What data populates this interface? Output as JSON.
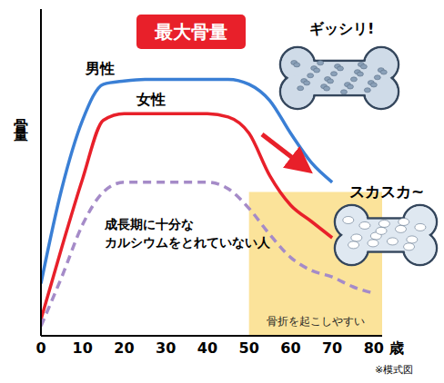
{
  "chart_data": {
    "type": "line",
    "title": "最大骨量",
    "x_label": "歳",
    "y_label": "骨量",
    "x": [
      0,
      5,
      10,
      15,
      20,
      25,
      30,
      35,
      40,
      45,
      50,
      55,
      60,
      65,
      70,
      75,
      80
    ],
    "series": [
      {
        "name": "男性",
        "color": "#3a7fd5",
        "line_style": "solid",
        "values": [
          16,
          45,
          66,
          77,
          78,
          78.5,
          78.5,
          78.5,
          78.5,
          78.5,
          77,
          72,
          62,
          53,
          47,
          null,
          null
        ]
      },
      {
        "name": "女性",
        "color": "#e8202a",
        "line_style": "solid",
        "values": [
          5,
          27,
          48,
          66,
          68,
          68,
          68,
          68,
          68,
          67,
          62,
          49,
          40,
          35,
          30,
          null,
          null
        ]
      },
      {
        "name": "成長期に十分なカルシウムをとれていない人",
        "color": "#a58bc8",
        "line_style": "dashed",
        "values": [
          3,
          18,
          34,
          44,
          47,
          47,
          47,
          47,
          47,
          45,
          39,
          31,
          24,
          20,
          18,
          15,
          13
        ]
      }
    ],
    "xlim": [
      0,
      82
    ],
    "xticks": [
      0,
      10,
      20,
      30,
      40,
      50,
      60,
      70,
      80
    ],
    "ylim": [
      0,
      100
    ],
    "yticks": [],
    "tick_labels": "x",
    "grid": false,
    "highlight": {
      "x": [
        50,
        82
      ],
      "y": [
        0,
        44
      ],
      "label": "骨折を起こしやすい",
      "color": "#fbe39a"
    },
    "annotations": [
      "ギッシリ!",
      "スカスカ~"
    ],
    "note": "※模式図"
  }
}
